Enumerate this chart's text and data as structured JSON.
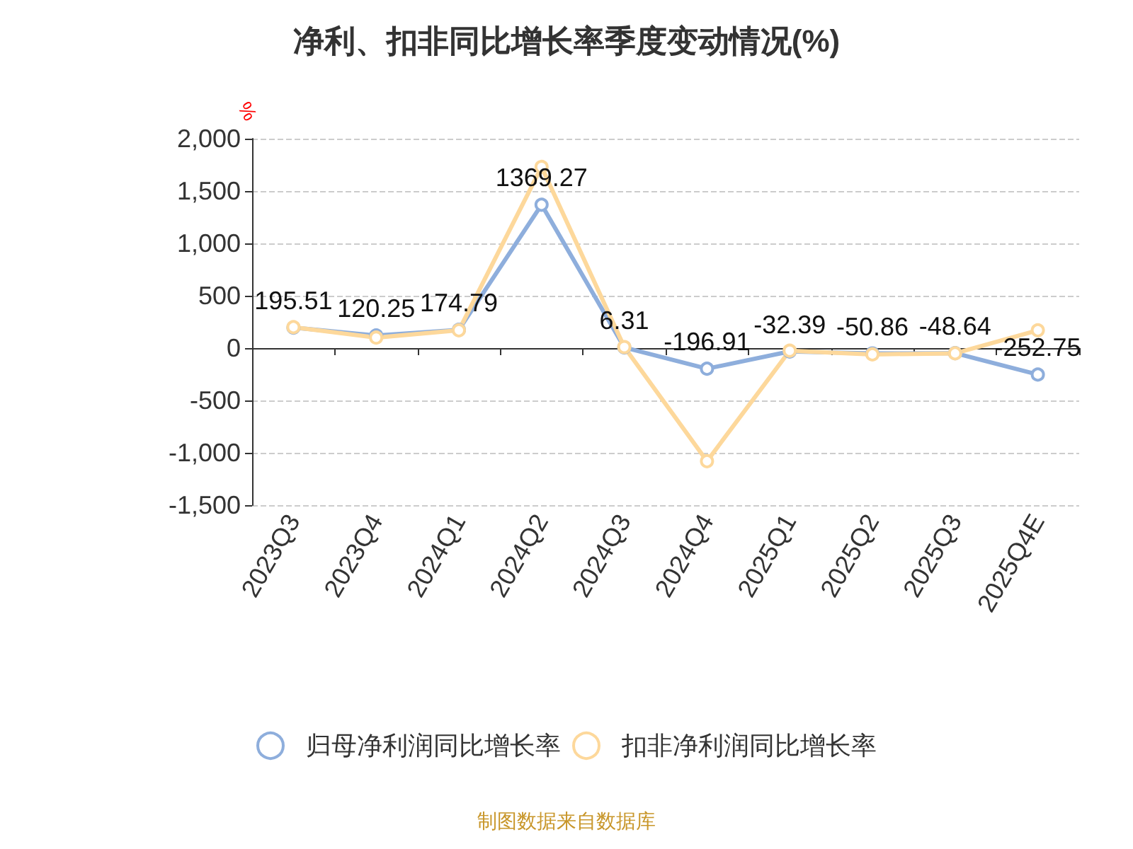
{
  "chart_data": {
    "type": "line",
    "title": "净利、扣非同比增长率季度变动情况(%)",
    "ylabel": "%",
    "categories": [
      "2023Q3",
      "2023Q4",
      "2024Q1",
      "2024Q2",
      "2024Q3",
      "2024Q4",
      "2025Q1",
      "2025Q2",
      "2025Q3",
      "2025Q4E"
    ],
    "series": [
      {
        "name": "归母净利润同比增长率",
        "color": "#8eaedc",
        "values": [
          195.51,
          120.25,
          174.79,
          1369.27,
          6.31,
          -196.91,
          -32.39,
          -50.86,
          -48.64,
          -252.75
        ],
        "value_labels": [
          "195.51",
          "120.25",
          "174.79",
          "1369.27",
          "6.31",
          "-196.91",
          "-32.39",
          "-50.86",
          "-48.64",
          "-252.75"
        ]
      },
      {
        "name": "扣非净利润同比增长率",
        "color": "#fdd89b",
        "values": [
          200,
          100,
          170,
          1730,
          10,
          -1080,
          -25,
          -60,
          -50,
          170
        ]
      }
    ],
    "ylim": [
      -1500,
      2000
    ],
    "yticks": [
      {
        "value": -1500,
        "label": "-1,500"
      },
      {
        "value": -1000,
        "label": "-1,000"
      },
      -500,
      0,
      500,
      {
        "value": 1000,
        "label": "1,000"
      },
      {
        "value": 1500,
        "label": "1,500"
      },
      {
        "value": 2000,
        "label": "2,000"
      }
    ],
    "grid": "y",
    "legend": "bottom",
    "marker": "circle",
    "line_style": "solid",
    "annotations": [
      "制图数据来自数据库"
    ]
  }
}
